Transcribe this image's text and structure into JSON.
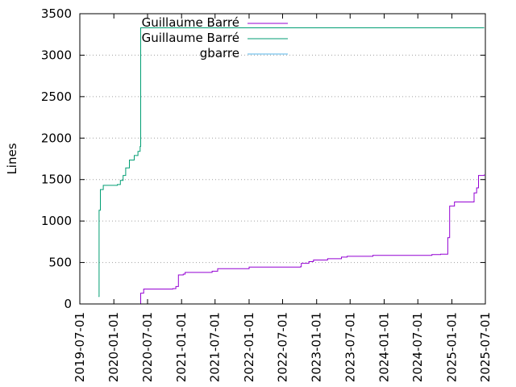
{
  "chart_data": {
    "type": "line",
    "title": "",
    "xlabel": "",
    "ylabel": "Lines",
    "x_axis_kind": "date",
    "xlim": [
      "2019-07-01",
      "2025-07-01"
    ],
    "ylim": [
      0,
      3500
    ],
    "x_ticks": [
      "2019-07-01",
      "2020-01-01",
      "2020-07-01",
      "2021-01-01",
      "2021-07-01",
      "2022-01-01",
      "2022-07-01",
      "2023-01-01",
      "2023-07-01",
      "2024-01-01",
      "2024-07-01",
      "2025-01-01",
      "2025-07-01"
    ],
    "y_ticks": [
      "0",
      "500",
      "1000",
      "1500",
      "2000",
      "2500",
      "3000",
      "3500"
    ],
    "grid": "horizontal dotted",
    "legend_position": "top-right",
    "series": [
      {
        "name": "Guillaume Barré",
        "color": "#9400d3",
        "step": true,
        "points": [
          [
            "2020-05-25",
            0
          ],
          [
            "2020-05-25",
            130
          ],
          [
            "2020-06-10",
            180
          ],
          [
            "2020-11-15",
            185
          ],
          [
            "2020-12-01",
            210
          ],
          [
            "2020-12-15",
            350
          ],
          [
            "2021-01-10",
            360
          ],
          [
            "2021-01-20",
            380
          ],
          [
            "2021-06-15",
            395
          ],
          [
            "2021-07-15",
            425
          ],
          [
            "2022-01-01",
            445
          ],
          [
            "2022-10-05",
            448
          ],
          [
            "2022-10-10",
            490
          ],
          [
            "2022-11-20",
            510
          ],
          [
            "2022-12-15",
            530
          ],
          [
            "2023-03-01",
            545
          ],
          [
            "2023-05-15",
            565
          ],
          [
            "2023-06-15",
            575
          ],
          [
            "2023-11-01",
            585
          ],
          [
            "2024-07-01",
            585
          ],
          [
            "2024-09-15",
            595
          ],
          [
            "2024-11-01",
            600
          ],
          [
            "2024-12-10",
            800
          ],
          [
            "2024-12-20",
            1180
          ],
          [
            "2025-01-15",
            1230
          ],
          [
            "2025-05-01",
            1340
          ],
          [
            "2025-05-15",
            1400
          ],
          [
            "2025-05-25",
            1550
          ],
          [
            "2025-06-25",
            1560
          ]
        ]
      },
      {
        "name": "Guillaume Barré",
        "color": "#009e73",
        "step": true,
        "points": [
          [
            "2019-10-10",
            90
          ],
          [
            "2019-10-13",
            1130
          ],
          [
            "2019-10-20",
            1380
          ],
          [
            "2019-11-05",
            1430
          ],
          [
            "2020-01-20",
            1440
          ],
          [
            "2020-02-05",
            1490
          ],
          [
            "2020-02-20",
            1550
          ],
          [
            "2020-03-05",
            1640
          ],
          [
            "2020-03-25",
            1735
          ],
          [
            "2020-04-20",
            1790
          ],
          [
            "2020-05-10",
            1840
          ],
          [
            "2020-05-22",
            1900
          ],
          [
            "2020-05-25",
            3330
          ],
          [
            "2025-06-25",
            3330
          ]
        ]
      },
      {
        "name": "gbarre",
        "color": "#56b4e9",
        "step": true,
        "points": [
          [
            "2020-05-25",
            0
          ],
          [
            "2025-06-25",
            0
          ]
        ]
      }
    ]
  }
}
